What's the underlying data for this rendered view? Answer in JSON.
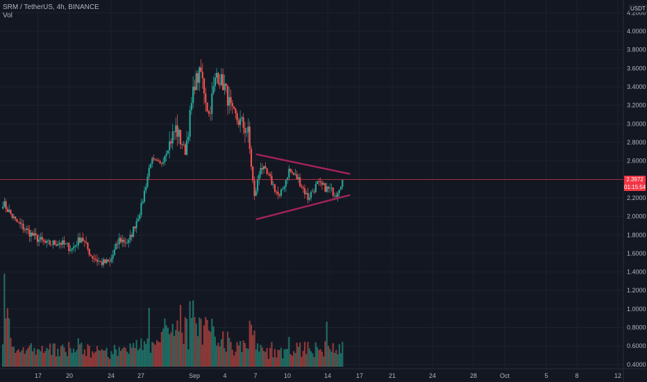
{
  "header": {
    "title": "SRM / TetherUS, 4h, BINANCE",
    "volume_label": "Vol"
  },
  "price_axis": {
    "unit": "USDT",
    "ticks": [
      "4.2000",
      "4.0000",
      "3.8000",
      "3.6000",
      "3.4000",
      "3.2000",
      "3.0000",
      "2.8000",
      "2.6000",
      "2.4000",
      "2.2000",
      "2.0000",
      "1.8000",
      "1.6000",
      "1.4000",
      "1.2000",
      "1.0000",
      "0.8000",
      "0.6000",
      "0.4000"
    ],
    "last_price": "2.3972",
    "countdown": "01:15:54"
  },
  "colors": {
    "background": "#131722",
    "up": "#26a69a",
    "down": "#ef5350",
    "volume_up": "#1f6b62",
    "volume_down": "#8f3a39",
    "pattern": "#a5225a",
    "last_price": "#f23645"
  },
  "chart_data": {
    "type": "candlestick",
    "title": "SRM / TetherUS, 4h, BINANCE",
    "x_tick_labels": [
      "17",
      "20",
      "24",
      "27",
      "Sep",
      "4",
      "7",
      "10",
      "14",
      "17",
      "21",
      "24",
      "28",
      "Oct",
      "5",
      "8",
      "12"
    ],
    "ylim": [
      1.35,
      4.22
    ],
    "volume_ylim": [
      0.38,
      1.42
    ],
    "anchors": [
      {
        "x": 0,
        "close": 2.15
      },
      {
        "x": 8,
        "close": 1.95
      },
      {
        "x": 20,
        "close": 1.78
      },
      {
        "x": 28,
        "close": 1.7
      },
      {
        "x": 36,
        "close": 1.72
      },
      {
        "x": 44,
        "close": 1.65
      },
      {
        "x": 50,
        "close": 1.78
      },
      {
        "x": 56,
        "close": 1.58
      },
      {
        "x": 62,
        "close": 1.5
      },
      {
        "x": 68,
        "close": 1.5
      },
      {
        "x": 74,
        "close": 1.75
      },
      {
        "x": 80,
        "close": 1.72
      },
      {
        "x": 88,
        "close": 2.1
      },
      {
        "x": 94,
        "close": 2.6
      },
      {
        "x": 100,
        "close": 2.55
      },
      {
        "x": 106,
        "close": 2.8
      },
      {
        "x": 110,
        "close": 2.95
      },
      {
        "x": 116,
        "close": 2.7
      },
      {
        "x": 122,
        "close": 3.45
      },
      {
        "x": 126,
        "close": 3.55
      },
      {
        "x": 131,
        "close": 3.1
      },
      {
        "x": 136,
        "close": 3.55
      },
      {
        "x": 141,
        "close": 3.4
      },
      {
        "x": 146,
        "close": 3.1
      },
      {
        "x": 152,
        "close": 3.0
      },
      {
        "x": 156,
        "close": 2.9
      },
      {
        "x": 160,
        "close": 2.2
      },
      {
        "x": 164,
        "close": 2.55
      },
      {
        "x": 170,
        "close": 2.4
      },
      {
        "x": 176,
        "close": 2.2
      },
      {
        "x": 182,
        "close": 2.5
      },
      {
        "x": 188,
        "close": 2.4
      },
      {
        "x": 194,
        "close": 2.2
      },
      {
        "x": 200,
        "close": 2.35
      },
      {
        "x": 206,
        "close": 2.3
      },
      {
        "x": 212,
        "close": 2.25
      },
      {
        "x": 216,
        "close": 2.4
      }
    ],
    "candle_count": 217,
    "pattern_lines": [
      {
        "name": "upper-trendline",
        "from": {
          "x": 162,
          "y": 2.67
        },
        "to": {
          "x": 221,
          "y": 2.46
        }
      },
      {
        "name": "lower-trendline",
        "from": {
          "x": 162,
          "y": 1.97
        },
        "to": {
          "x": 221,
          "y": 2.23
        }
      }
    ],
    "last_price_value": 2.3972
  }
}
